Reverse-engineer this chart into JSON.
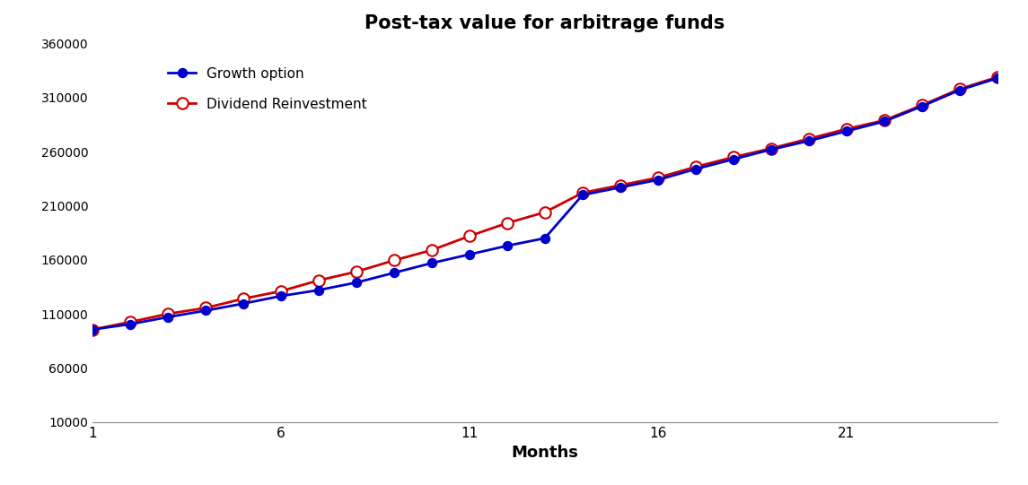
{
  "title": "Post-tax value for arbitrage funds",
  "xlabel": "Months",
  "x_ticks": [
    1,
    6,
    11,
    16,
    21
  ],
  "ylim": [
    10000,
    360000
  ],
  "xlim": [
    1,
    25
  ],
  "y_ticks": [
    10000,
    60000,
    110000,
    160000,
    210000,
    260000,
    310000,
    360000
  ],
  "growth_label": "Growth option",
  "dividend_label": "Dividend Reinvestment",
  "growth_color": "#0000CD",
  "dividend_color": "#CC0000",
  "months": [
    1,
    2,
    3,
    4,
    5,
    6,
    7,
    8,
    9,
    10,
    11,
    12,
    13,
    14,
    15,
    16,
    17,
    18,
    19,
    20,
    21,
    22,
    23,
    24,
    25
  ],
  "growth_values": [
    95500,
    100500,
    107000,
    113000,
    119500,
    126500,
    132000,
    139000,
    148000,
    157000,
    165000,
    173000,
    180000,
    220000,
    227000,
    234000,
    244000,
    253000,
    262000,
    270000,
    279000,
    288000,
    302000,
    317000,
    328000
  ],
  "dividend_values": [
    95500,
    102500,
    110000,
    115500,
    124000,
    131000,
    141000,
    149000,
    159500,
    169000,
    182000,
    194000,
    204000,
    222000,
    229000,
    236000,
    246000,
    255000,
    263000,
    272000,
    281000,
    289000,
    303000,
    318000,
    329000
  ],
  "background_color": "#ffffff"
}
